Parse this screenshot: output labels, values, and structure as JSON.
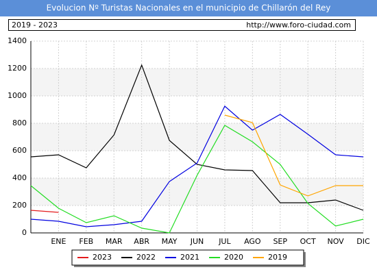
{
  "chart_data": {
    "type": "line",
    "title": "Evolucion Nº Turistas Nacionales en el municipio de Chillarón del Rey",
    "subtitle": "2019 - 2023",
    "source": "http://www.foro-ciudad.com",
    "categories": [
      null,
      "ENE",
      "FEB",
      "MAR",
      "ABR",
      "MAY",
      "JUN",
      "JUL",
      "AGO",
      "SEP",
      "OCT",
      "NOV",
      "DIC"
    ],
    "series": [
      {
        "name": "2023",
        "color": "#e31a1c",
        "values": [
          165,
          150,
          null,
          null,
          null,
          null,
          null,
          null,
          null,
          null,
          null,
          null,
          null
        ]
      },
      {
        "name": "2022",
        "color": "#000000",
        "values": [
          555,
          570,
          475,
          715,
          1225,
          675,
          500,
          460,
          455,
          220,
          220,
          240,
          165
        ]
      },
      {
        "name": "2021",
        "color": "#0000e0",
        "values": [
          100,
          85,
          45,
          60,
          85,
          375,
          510,
          925,
          750,
          865,
          720,
          570,
          555
        ]
      },
      {
        "name": "2020",
        "color": "#22dd22",
        "values": [
          345,
          180,
          75,
          125,
          35,
          0,
          420,
          785,
          665,
          500,
          215,
          50,
          100
        ]
      },
      {
        "name": "2019",
        "color": "#ffa500",
        "values": [
          null,
          null,
          null,
          null,
          null,
          null,
          null,
          860,
          805,
          350,
          270,
          345,
          345
        ]
      }
    ],
    "ylim": [
      0,
      1400
    ],
    "yticks": [
      0,
      200,
      400,
      600,
      800,
      1000,
      1200,
      1400
    ],
    "grid": true
  }
}
